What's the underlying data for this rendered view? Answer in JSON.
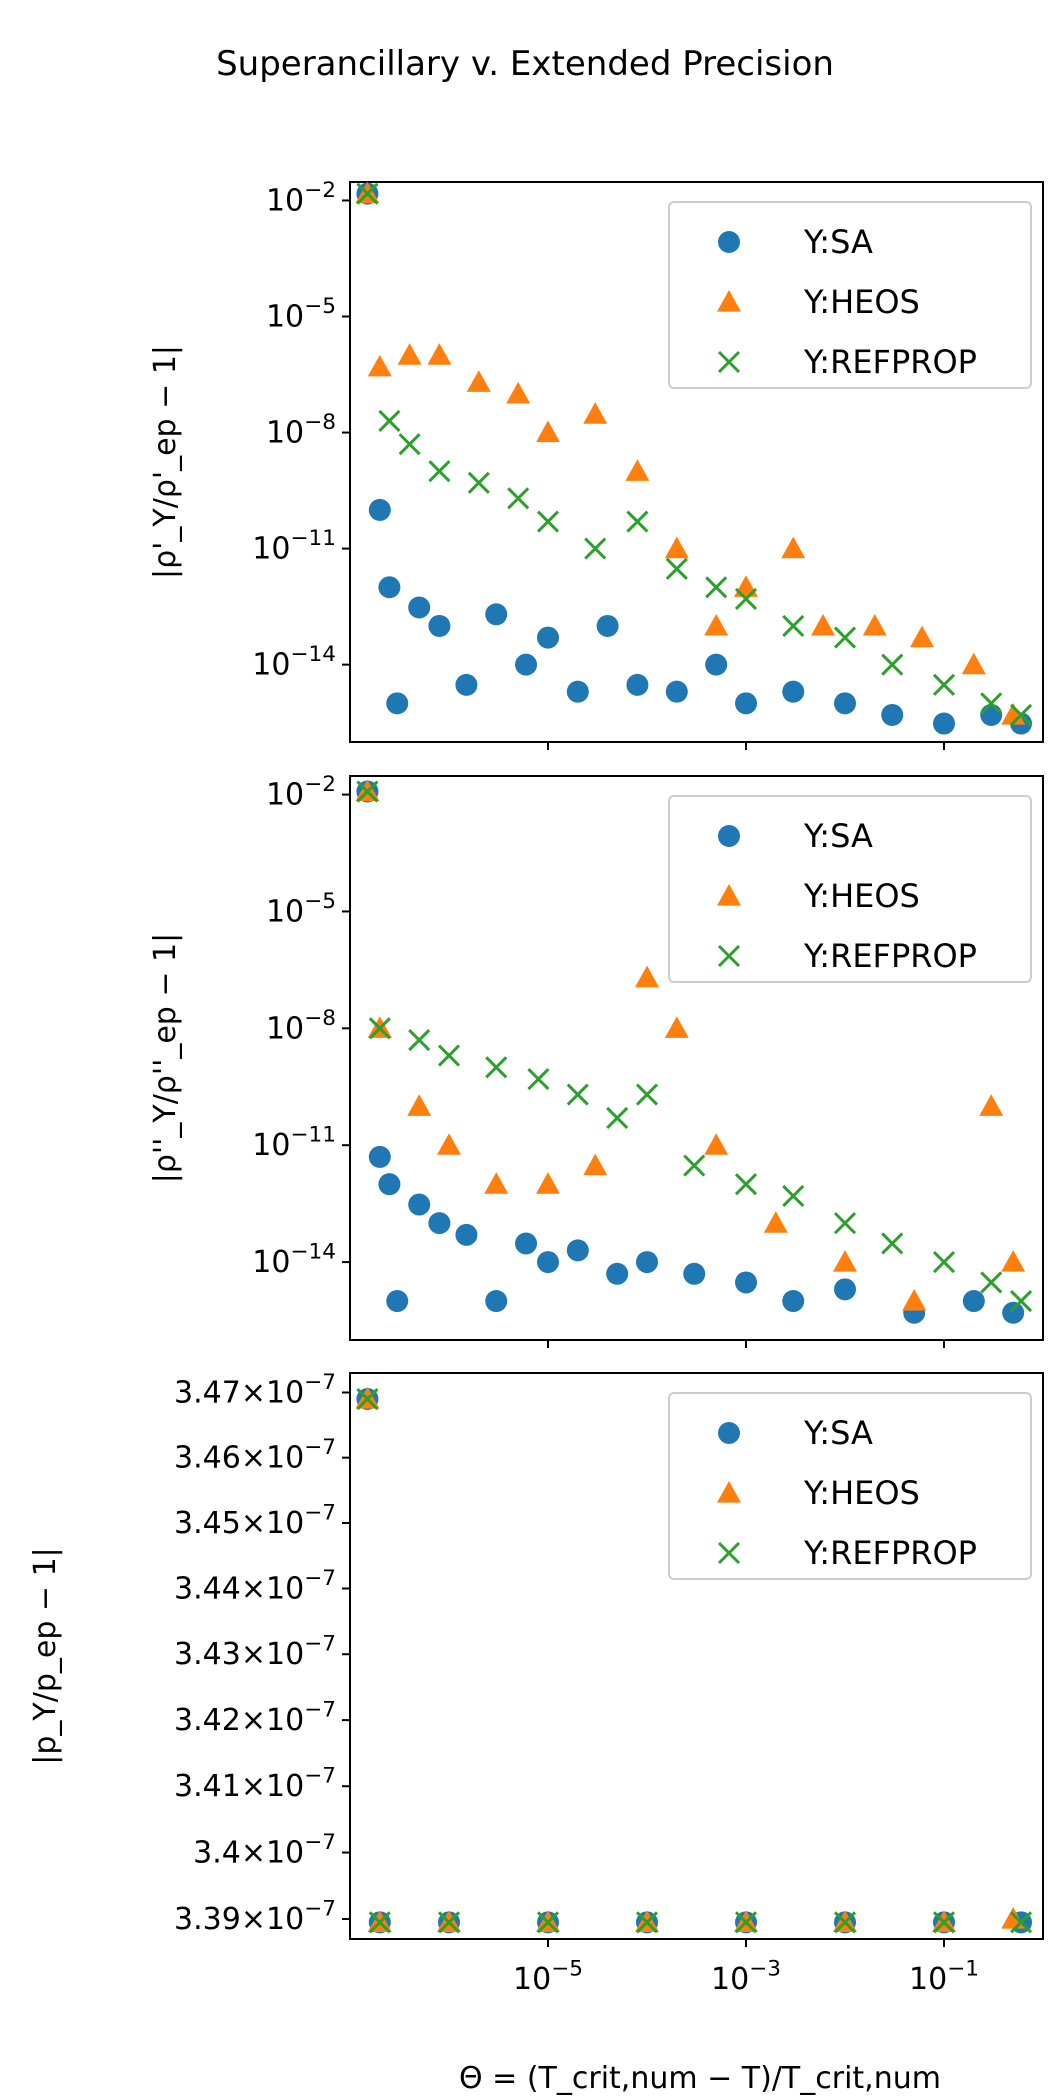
{
  "figure": {
    "title": "Superancillary v. Extended Precision",
    "xlabel": "Θ = (T_crit,num − T)/T_crit,num",
    "x_tick_labels": [
      "10^-5",
      "10^-3",
      "10^-1"
    ]
  },
  "colors": {
    "SA": "#1f77b4",
    "HEOS": "#ff7f0e",
    "REFPROP": "#2ca02c"
  },
  "chart_data": [
    {
      "type": "scatter",
      "panel": "top",
      "ylabel": "|ρ'_Y/ρ'_ep − 1|",
      "xscale": "log",
      "yscale": "log",
      "xlim": [
        1e-07,
        1
      ],
      "ylim": [
        1e-16,
        0.03
      ],
      "legend_position": "top-right",
      "y_ticks": [
        "10^-2",
        "10^-5",
        "10^-8",
        "10^-11",
        "10^-14"
      ],
      "series": [
        {
          "name": "Y:SA",
          "marker": "circle",
          "x": [
            1.5e-07,
            2e-07,
            2.5e-07,
            3e-07,
            5e-07,
            8e-07,
            1.5e-06,
            3e-06,
            6e-06,
            1e-05,
            2e-05,
            4e-05,
            8e-05,
            0.0002,
            0.0005,
            0.001,
            0.003,
            0.01,
            0.03,
            0.1,
            0.3,
            0.6
          ],
          "y": [
            0.015,
            1e-10,
            1e-12,
            1e-15,
            3e-13,
            1e-13,
            3e-15,
            2e-13,
            1e-14,
            5e-14,
            2e-15,
            1e-13,
            3e-15,
            2e-15,
            1e-14,
            1e-15,
            2e-15,
            1e-15,
            5e-16,
            3e-16,
            5e-16,
            3e-16
          ]
        },
        {
          "name": "Y:HEOS",
          "marker": "triangle",
          "x": [
            1.5e-07,
            2e-07,
            4e-07,
            8e-07,
            2e-06,
            5e-06,
            1e-05,
            3e-05,
            8e-05,
            0.0002,
            0.0005,
            0.001,
            0.003,
            0.006,
            0.02,
            0.06,
            0.2,
            0.5
          ],
          "y": [
            0.015,
            5e-07,
            1e-06,
            1e-06,
            2e-07,
            1e-07,
            1e-08,
            3e-08,
            1e-09,
            1e-11,
            1e-13,
            1e-12,
            1e-11,
            1e-13,
            1e-13,
            5e-14,
            1e-14,
            5e-16
          ]
        },
        {
          "name": "Y:REFPROP",
          "marker": "x",
          "x": [
            1.5e-07,
            2.5e-07,
            4e-07,
            8e-07,
            2e-06,
            5e-06,
            1e-05,
            3e-05,
            8e-05,
            0.0002,
            0.0005,
            0.001,
            0.003,
            0.01,
            0.03,
            0.1,
            0.3,
            0.6
          ],
          "y": [
            0.015,
            2e-08,
            5e-09,
            1e-09,
            5e-10,
            2e-10,
            5e-11,
            1e-11,
            5e-11,
            3e-12,
            1e-12,
            5e-13,
            1e-13,
            5e-14,
            1e-14,
            3e-15,
            1e-15,
            5e-16
          ]
        }
      ]
    },
    {
      "type": "scatter",
      "panel": "middle",
      "ylabel": "|ρ''_Y/ρ''_ep − 1|",
      "xscale": "log",
      "yscale": "log",
      "xlim": [
        1e-07,
        1
      ],
      "ylim": [
        1e-16,
        0.03
      ],
      "legend_position": "top-right",
      "y_ticks": [
        "10^-2",
        "10^-5",
        "10^-8",
        "10^-11",
        "10^-14"
      ],
      "series": [
        {
          "name": "Y:SA",
          "marker": "circle",
          "x": [
            1.5e-07,
            2e-07,
            2.5e-07,
            3e-07,
            5e-07,
            8e-07,
            1.5e-06,
            3e-06,
            6e-06,
            1e-05,
            2e-05,
            5e-05,
            0.0001,
            0.0003,
            0.001,
            0.003,
            0.01,
            0.05,
            0.2,
            0.5
          ],
          "y": [
            0.012,
            5e-12,
            1e-12,
            1e-15,
            3e-13,
            1e-13,
            5e-14,
            1e-15,
            3e-14,
            1e-14,
            2e-14,
            5e-15,
            1e-14,
            5e-15,
            3e-15,
            1e-15,
            2e-15,
            5e-16,
            1e-15,
            5e-16
          ]
        },
        {
          "name": "Y:HEOS",
          "marker": "triangle",
          "x": [
            1.5e-07,
            2e-07,
            5e-07,
            1e-06,
            3e-06,
            1e-05,
            3e-05,
            0.0001,
            0.0002,
            0.0005,
            0.002,
            0.01,
            0.05,
            0.3,
            0.5
          ],
          "y": [
            0.012,
            1e-08,
            1e-10,
            1e-11,
            1e-12,
            1e-12,
            3e-12,
            2e-07,
            1e-08,
            1e-11,
            1e-13,
            1e-14,
            1e-15,
            1e-10,
            1e-14
          ]
        },
        {
          "name": "Y:REFPROP",
          "marker": "x",
          "x": [
            1.5e-07,
            2e-07,
            5e-07,
            1e-06,
            3e-06,
            8e-06,
            2e-05,
            5e-05,
            0.0001,
            0.0003,
            0.001,
            0.003,
            0.01,
            0.03,
            0.1,
            0.3,
            0.6
          ],
          "y": [
            0.012,
            1e-08,
            5e-09,
            2e-09,
            1e-09,
            5e-10,
            2e-10,
            5e-11,
            2e-10,
            3e-12,
            1e-12,
            5e-13,
            1e-13,
            3e-14,
            1e-14,
            3e-15,
            1e-15
          ]
        }
      ]
    },
    {
      "type": "scatter",
      "panel": "bottom",
      "ylabel": "|p_Y/p_ep − 1|",
      "xscale": "log",
      "yscale": "log",
      "xlim": [
        1e-07,
        1
      ],
      "ylim": [
        3.387e-07,
        3.473e-07
      ],
      "legend_position": "top-right",
      "y_ticks": [
        "3.47×10^-7",
        "3.46×10^-7",
        "3.45×10^-7",
        "3.44×10^-7",
        "3.43×10^-7",
        "3.42×10^-7",
        "3.41×10^-7",
        "3.4×10^-7",
        "3.39×10^-7"
      ],
      "series": [
        {
          "name": "Y:SA",
          "marker": "circle",
          "x": [
            1.5e-07,
            2e-07,
            1e-06,
            1e-05,
            0.0001,
            0.001,
            0.01,
            0.1,
            0.6
          ],
          "y": [
            3.469e-07,
            3.3895e-07,
            3.3895e-07,
            3.3895e-07,
            3.3895e-07,
            3.3895e-07,
            3.3895e-07,
            3.3895e-07,
            3.3895e-07
          ]
        },
        {
          "name": "Y:HEOS",
          "marker": "triangle",
          "x": [
            1.5e-07,
            2e-07,
            1e-06,
            1e-05,
            0.0001,
            0.001,
            0.01,
            0.1,
            0.5
          ],
          "y": [
            3.469e-07,
            3.3895e-07,
            3.3895e-07,
            3.3895e-07,
            3.3895e-07,
            3.3895e-07,
            3.3895e-07,
            3.3895e-07,
            3.39e-07
          ]
        },
        {
          "name": "Y:REFPROP",
          "marker": "x",
          "x": [
            1.5e-07,
            2e-07,
            1e-06,
            1e-05,
            0.0001,
            0.001,
            0.01,
            0.1,
            0.6
          ],
          "y": [
            3.469e-07,
            3.3895e-07,
            3.3895e-07,
            3.3895e-07,
            3.3895e-07,
            3.3895e-07,
            3.3895e-07,
            3.3895e-07,
            3.3895e-07
          ]
        }
      ]
    }
  ]
}
